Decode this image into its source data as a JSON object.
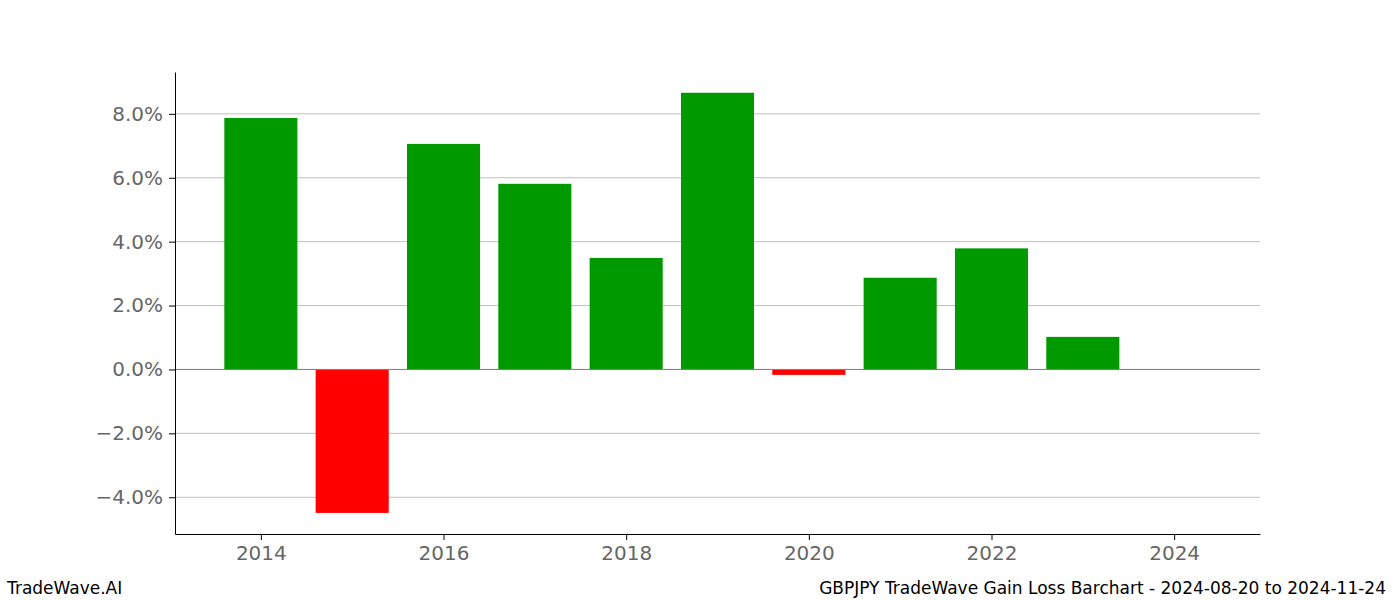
{
  "chart_data": {
    "type": "bar",
    "title": "GBPJPY TradeWave Gain Loss Barchart - 2024-08-20 to 2024-11-24",
    "subtitle": "TradeWave.AI",
    "x": [
      2014,
      2015,
      2016,
      2017,
      2018,
      2019,
      2020,
      2021,
      2022,
      2023,
      2024
    ],
    "values": [
      7.87,
      -4.49,
      7.06,
      5.81,
      3.49,
      8.66,
      -0.17,
      2.87,
      3.79,
      1.02,
      0
    ],
    "colors": [
      "#009900",
      "#ff0000",
      "#009900",
      "#009900",
      "#009900",
      "#009900",
      "#ff0000",
      "#009900",
      "#009900",
      "#009900",
      "#009900"
    ],
    "xlim": [
      2013.06,
      2024.94
    ],
    "xticks": [
      2014,
      2016,
      2018,
      2020,
      2022,
      2024
    ],
    "ylim": [
      -5.15,
      9.31
    ],
    "yticks": [
      {
        "value": -4,
        "label": "−4.0%"
      },
      {
        "value": -2,
        "label": "−2.0%"
      },
      {
        "value": 0,
        "label": "0.0%"
      },
      {
        "value": 2,
        "label": "2.0%"
      },
      {
        "value": 4,
        "label": "4.0%"
      },
      {
        "value": 6,
        "label": "6.0%"
      },
      {
        "value": 8,
        "label": "8.0%"
      }
    ],
    "grid": true
  }
}
